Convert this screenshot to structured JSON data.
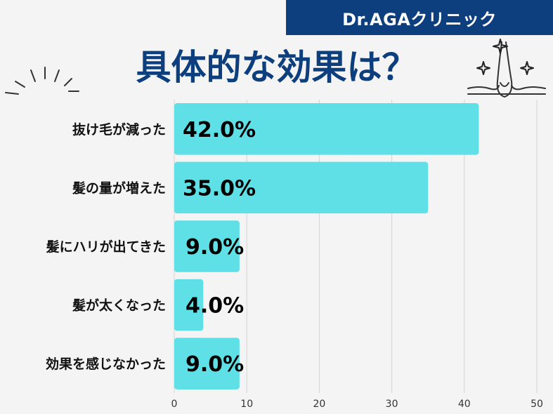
{
  "header": {
    "brand": "Dr.AGAクリニック",
    "title": "具体的な効果は？"
  },
  "colors": {
    "bar": "#5ee0e6",
    "brand_bg": "#0d3f7e",
    "title": "#0d3f7e",
    "background": "#f4f4f4",
    "grid": "#d4d4d4"
  },
  "icons": [
    "burst-lines-icon",
    "hair-follicle-sparkle-icon"
  ],
  "chart_data": {
    "type": "bar",
    "orientation": "horizontal",
    "categories": [
      "抜け毛が減った",
      "髪の量が増えた",
      "髪にハリが出てきた",
      "髪が太くなった",
      "効果を感じなかった"
    ],
    "values": [
      42.0,
      35.0,
      9.0,
      4.0,
      9.0
    ],
    "value_labels": [
      "42.0%",
      "35.0%",
      "9.0%",
      "4.0%",
      "9.0%"
    ],
    "title": "具体的な効果は？",
    "xlim": [
      0,
      50
    ],
    "xticks": [
      0,
      10,
      20,
      30,
      40,
      50
    ],
    "grid": true,
    "legend": "none"
  }
}
